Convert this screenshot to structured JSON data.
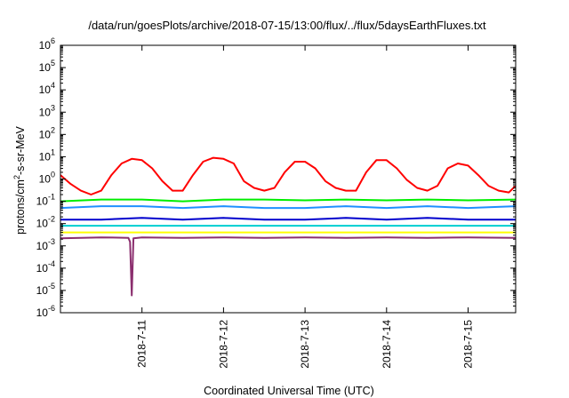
{
  "chart_data": {
    "type": "line",
    "title": "/data/run/goesPlots/archive/2018-07-15/13:00/flux/../flux/5daysEarthFluxes.txt",
    "xlabel": "Coordinated Universal Time (UTC)",
    "ylabel": {
      "prefix": "protons/cm",
      "sup": "2",
      "suffix": "-s-sr-MeV"
    },
    "yscale": "log",
    "ylim": [
      1e-06,
      1000000.0
    ],
    "xlim": [
      "2018-07-10 00:00",
      "2018-07-15 14:00"
    ],
    "grid": false,
    "legend": "none",
    "x_ticks": [
      "2018-7-11",
      "2018-7-12",
      "2018-7-13",
      "2018-7-14",
      "2018-7-15"
    ],
    "y_ticks": [
      {
        "base": "10",
        "exp": "-6"
      },
      {
        "base": "10",
        "exp": "-5"
      },
      {
        "base": "10",
        "exp": "-4"
      },
      {
        "base": "10",
        "exp": "-3"
      },
      {
        "base": "10",
        "exp": "-2"
      },
      {
        "base": "10",
        "exp": "-1"
      },
      {
        "base": "10",
        "exp": "0"
      },
      {
        "base": "10",
        "exp": "1"
      },
      {
        "base": "10",
        "exp": "2"
      },
      {
        "base": "10",
        "exp": "3"
      },
      {
        "base": "10",
        "exp": "4"
      },
      {
        "base": "10",
        "exp": "5"
      },
      {
        "base": "10",
        "exp": "6"
      }
    ],
    "series": [
      {
        "color": "#ff0000",
        "x": [
          "2018-07-10 00:00",
          "2018-07-10 03:00",
          "2018-07-10 06:00",
          "2018-07-10 09:00",
          "2018-07-10 12:00",
          "2018-07-10 15:00",
          "2018-07-10 18:00",
          "2018-07-10 21:00",
          "2018-07-11 00:00",
          "2018-07-11 03:00",
          "2018-07-11 06:00",
          "2018-07-11 09:00",
          "2018-07-11 12:00",
          "2018-07-11 15:00",
          "2018-07-11 18:00",
          "2018-07-11 21:00",
          "2018-07-12 00:00",
          "2018-07-12 03:00",
          "2018-07-12 06:00",
          "2018-07-12 09:00",
          "2018-07-12 12:00",
          "2018-07-12 15:00",
          "2018-07-12 18:00",
          "2018-07-12 21:00",
          "2018-07-13 00:00",
          "2018-07-13 03:00",
          "2018-07-13 06:00",
          "2018-07-13 09:00",
          "2018-07-13 12:00",
          "2018-07-13 15:00",
          "2018-07-13 18:00",
          "2018-07-13 21:00",
          "2018-07-14 00:00",
          "2018-07-14 03:00",
          "2018-07-14 06:00",
          "2018-07-14 09:00",
          "2018-07-14 12:00",
          "2018-07-14 15:00",
          "2018-07-14 18:00",
          "2018-07-14 21:00",
          "2018-07-15 00:00",
          "2018-07-15 03:00",
          "2018-07-15 06:00",
          "2018-07-15 09:00",
          "2018-07-15 12:00",
          "2018-07-15 14:00"
        ],
        "y": [
          1.5,
          0.6,
          0.3,
          0.2,
          0.3,
          1.5,
          5,
          8,
          7,
          3,
          0.8,
          0.3,
          0.3,
          1.5,
          6,
          9,
          8,
          5,
          0.8,
          0.4,
          0.3,
          0.4,
          2,
          6,
          6,
          3,
          0.8,
          0.4,
          0.3,
          0.3,
          2,
          7,
          7,
          3,
          0.9,
          0.4,
          0.3,
          0.5,
          3,
          5,
          4,
          1.5,
          0.5,
          0.3,
          0.25,
          0.5
        ]
      },
      {
        "color": "#00ee00",
        "x": [
          "2018-07-10 00:00",
          "2018-07-10 12:00",
          "2018-07-11 00:00",
          "2018-07-11 12:00",
          "2018-07-12 00:00",
          "2018-07-12 12:00",
          "2018-07-13 00:00",
          "2018-07-13 12:00",
          "2018-07-14 00:00",
          "2018-07-14 12:00",
          "2018-07-15 00:00",
          "2018-07-15 14:00"
        ],
        "y": [
          0.1,
          0.12,
          0.12,
          0.1,
          0.12,
          0.12,
          0.11,
          0.12,
          0.11,
          0.12,
          0.11,
          0.12
        ]
      },
      {
        "color": "#1e90ff",
        "x": [
          "2018-07-10 00:00",
          "2018-07-10 12:00",
          "2018-07-11 00:00",
          "2018-07-11 12:00",
          "2018-07-12 00:00",
          "2018-07-12 12:00",
          "2018-07-13 00:00",
          "2018-07-13 12:00",
          "2018-07-14 00:00",
          "2018-07-14 12:00",
          "2018-07-15 00:00",
          "2018-07-15 14:00"
        ],
        "y": [
          0.05,
          0.06,
          0.06,
          0.05,
          0.06,
          0.05,
          0.05,
          0.06,
          0.05,
          0.06,
          0.05,
          0.06
        ]
      },
      {
        "color": "#0000cd",
        "x": [
          "2018-07-10 00:00",
          "2018-07-10 12:00",
          "2018-07-11 00:00",
          "2018-07-11 12:00",
          "2018-07-12 00:00",
          "2018-07-12 12:00",
          "2018-07-13 00:00",
          "2018-07-13 12:00",
          "2018-07-14 00:00",
          "2018-07-14 12:00",
          "2018-07-15 00:00",
          "2018-07-15 14:00"
        ],
        "y": [
          0.015,
          0.015,
          0.018,
          0.015,
          0.018,
          0.015,
          0.015,
          0.018,
          0.015,
          0.018,
          0.015,
          0.015
        ]
      },
      {
        "color": "#00ced1",
        "x": [
          "2018-07-10 00:00",
          "2018-07-10 12:00",
          "2018-07-11 00:00",
          "2018-07-11 12:00",
          "2018-07-12 00:00",
          "2018-07-12 12:00",
          "2018-07-13 00:00",
          "2018-07-13 12:00",
          "2018-07-14 00:00",
          "2018-07-14 12:00",
          "2018-07-15 00:00",
          "2018-07-15 14:00"
        ],
        "y": [
          0.008,
          0.008,
          0.008,
          0.008,
          0.008,
          0.008,
          0.008,
          0.008,
          0.008,
          0.008,
          0.008,
          0.008
        ]
      },
      {
        "color": "#ffff00",
        "x": [
          "2018-07-10 00:00",
          "2018-07-10 12:00",
          "2018-07-11 00:00",
          "2018-07-11 12:00",
          "2018-07-12 00:00",
          "2018-07-12 12:00",
          "2018-07-13 00:00",
          "2018-07-13 12:00",
          "2018-07-14 00:00",
          "2018-07-14 12:00",
          "2018-07-15 00:00",
          "2018-07-15 14:00"
        ],
        "y": [
          0.004,
          0.004,
          0.004,
          0.004,
          0.004,
          0.004,
          0.004,
          0.004,
          0.004,
          0.004,
          0.004,
          0.004
        ]
      },
      {
        "color": "#8b2e6e",
        "x": [
          "2018-07-10 00:00",
          "2018-07-10 12:00",
          "2018-07-10 20:00",
          "2018-07-10 20:30",
          "2018-07-10 21:00",
          "2018-07-10 21:30",
          "2018-07-11 00:00",
          "2018-07-11 12:00",
          "2018-07-12 00:00",
          "2018-07-12 12:00",
          "2018-07-13 00:00",
          "2018-07-13 12:00",
          "2018-07-14 00:00",
          "2018-07-14 12:00",
          "2018-07-15 00:00",
          "2018-07-15 14:00"
        ],
        "y": [
          0.0022,
          0.0024,
          0.0023,
          0.0015,
          6e-06,
          0.0022,
          0.0024,
          0.0023,
          0.0024,
          0.0023,
          0.0024,
          0.0023,
          0.0024,
          0.0023,
          0.0024,
          0.0023
        ]
      }
    ]
  }
}
